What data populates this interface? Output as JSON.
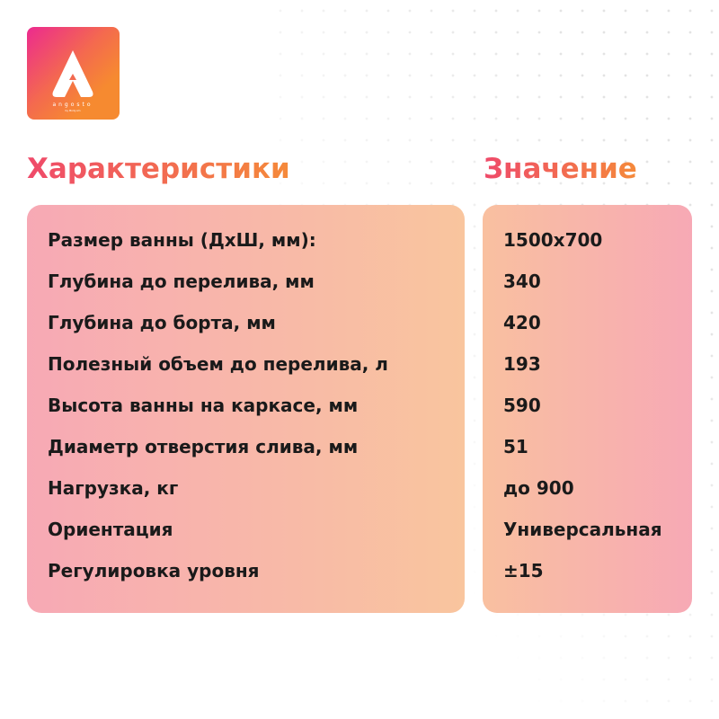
{
  "logo": {
    "text": "angosto",
    "subtext": "by Bodyum"
  },
  "headers": {
    "characteristics": "Характеристики",
    "value": "Значение"
  },
  "rows": [
    {
      "name": "Размер ванны (ДхШ, мм):",
      "value": "1500х700"
    },
    {
      "name": "Глубина до перелива, мм",
      "value": "340"
    },
    {
      "name": "Глубина до борта, мм",
      "value": "420"
    },
    {
      "name": "Полезный объем до перелива, л",
      "value": "193"
    },
    {
      "name": "Высота ванны на каркасе, мм",
      "value": "590"
    },
    {
      "name": "Диаметр отверстия слива, мм",
      "value": "51"
    },
    {
      "name": "Нагрузка, кг",
      "value": "до 900"
    },
    {
      "name": "Ориентация",
      "value": "Универсальная"
    },
    {
      "name": "Регулировка уровня",
      "value": "±15"
    }
  ],
  "colors": {
    "accent_start": "#ef4a6a",
    "accent_end": "#f58a3a"
  }
}
